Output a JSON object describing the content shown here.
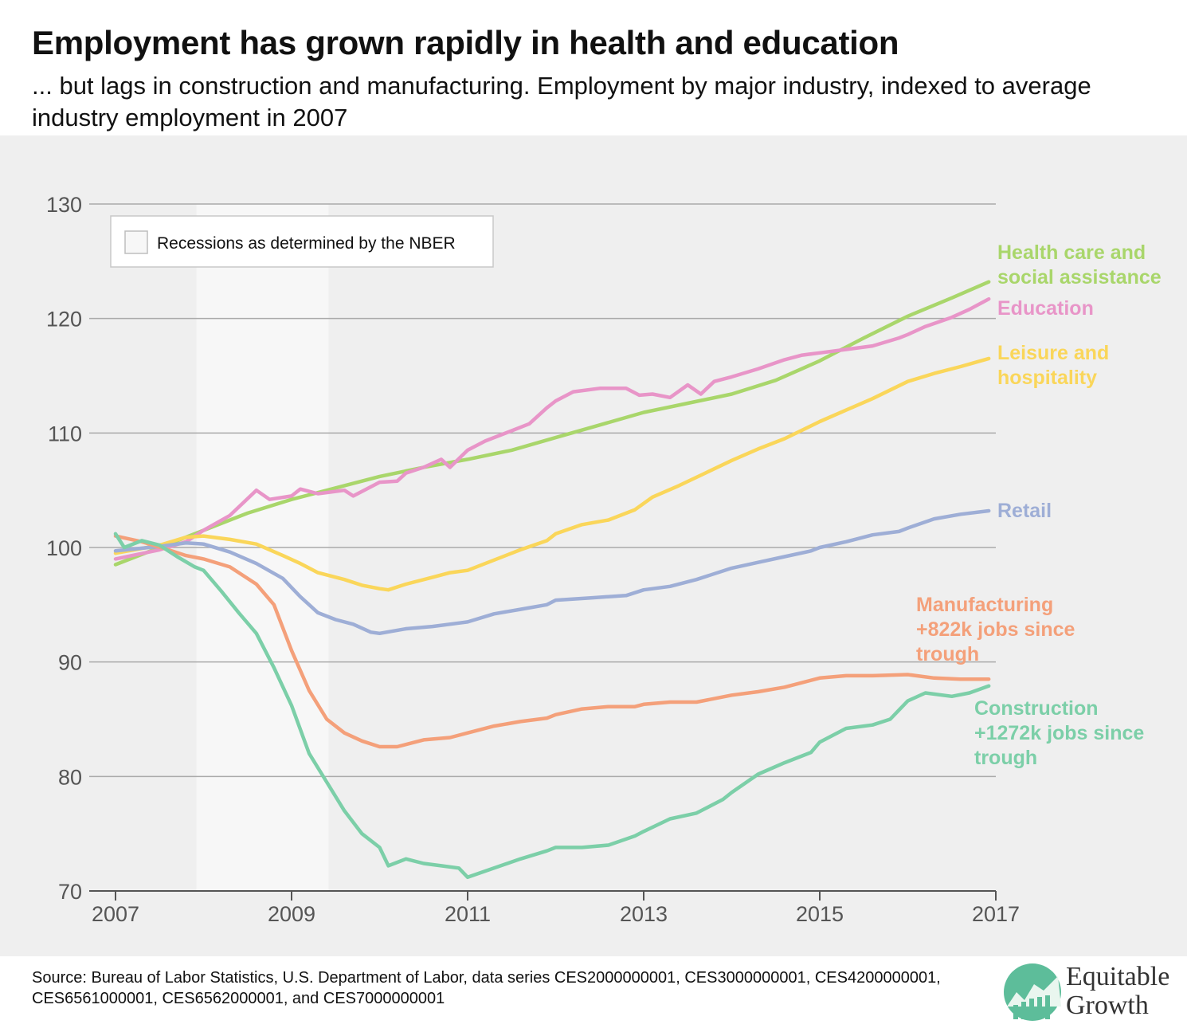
{
  "title": "Employment has grown rapidly in health and education",
  "subtitle": "... but lags in construction and manufacturing. Employment by major industry, indexed to average industry employment in 2007",
  "source": "Source: Bureau of Labor Statistics, U.S. Department of Labor, data series CES2000000001, CES3000000001, CES4200000001, CES6561000001, CES6562000001, and CES7000000001",
  "legend": {
    "recession_label": "Recessions as determined by the NBER"
  },
  "logo": {
    "line1": "Equitable",
    "line2": "Growth",
    "icon": "growth-chart-icon",
    "icon_color": "#5dbd9a"
  },
  "chart_data": {
    "type": "line",
    "title": "",
    "xlabel": "",
    "ylabel": "",
    "xlim": [
      2007,
      2017
    ],
    "ylim": [
      70,
      130
    ],
    "xticks": [
      "2007",
      "2009",
      "2011",
      "2013",
      "2015",
      "2017"
    ],
    "yticks": [
      "70",
      "80",
      "90",
      "100",
      "110",
      "120",
      "130"
    ],
    "grid": true,
    "recession": {
      "start": 2007.92,
      "end": 2009.42,
      "color": "#f7f7f7"
    },
    "series": [
      {
        "key": "health",
        "label_lines": [
          "Health care and",
          "social assistance"
        ],
        "color": "#a9d66b",
        "points": [
          [
            2007.0,
            98.5
          ],
          [
            2007.5,
            100.0
          ],
          [
            2008.0,
            101.5
          ],
          [
            2008.5,
            103.0
          ],
          [
            2009.0,
            104.2
          ],
          [
            2009.5,
            105.2
          ],
          [
            2010.0,
            106.2
          ],
          [
            2010.5,
            107.0
          ],
          [
            2011.0,
            107.7
          ],
          [
            2011.5,
            108.5
          ],
          [
            2012.0,
            109.6
          ],
          [
            2012.5,
            110.7
          ],
          [
            2013.0,
            111.8
          ],
          [
            2013.5,
            112.6
          ],
          [
            2014.0,
            113.4
          ],
          [
            2014.5,
            114.6
          ],
          [
            2015.0,
            116.3
          ],
          [
            2015.5,
            118.3
          ],
          [
            2016.0,
            120.2
          ],
          [
            2016.5,
            121.8
          ],
          [
            2016.92,
            123.2
          ]
        ]
      },
      {
        "key": "education",
        "label_lines": [
          "Education"
        ],
        "color": "#e895c8",
        "points": [
          [
            2007.0,
            99.0
          ],
          [
            2007.5,
            99.8
          ],
          [
            2007.8,
            100.5
          ],
          [
            2008.0,
            101.5
          ],
          [
            2008.3,
            102.8
          ],
          [
            2008.6,
            105.0
          ],
          [
            2008.75,
            104.2
          ],
          [
            2009.0,
            104.5
          ],
          [
            2009.1,
            105.1
          ],
          [
            2009.3,
            104.7
          ],
          [
            2009.6,
            105.0
          ],
          [
            2009.7,
            104.5
          ],
          [
            2009.9,
            105.3
          ],
          [
            2010.0,
            105.7
          ],
          [
            2010.2,
            105.8
          ],
          [
            2010.3,
            106.5
          ],
          [
            2010.5,
            107.0
          ],
          [
            2010.7,
            107.7
          ],
          [
            2010.8,
            107.0
          ],
          [
            2011.0,
            108.5
          ],
          [
            2011.2,
            109.3
          ],
          [
            2011.5,
            110.2
          ],
          [
            2011.7,
            110.8
          ],
          [
            2011.9,
            112.2
          ],
          [
            2012.0,
            112.8
          ],
          [
            2012.2,
            113.6
          ],
          [
            2012.5,
            113.9
          ],
          [
            2012.8,
            113.9
          ],
          [
            2012.95,
            113.3
          ],
          [
            2013.1,
            113.4
          ],
          [
            2013.3,
            113.1
          ],
          [
            2013.5,
            114.2
          ],
          [
            2013.65,
            113.4
          ],
          [
            2013.8,
            114.5
          ],
          [
            2014.0,
            114.9
          ],
          [
            2014.3,
            115.6
          ],
          [
            2014.6,
            116.4
          ],
          [
            2014.8,
            116.8
          ],
          [
            2015.0,
            117.0
          ],
          [
            2015.3,
            117.3
          ],
          [
            2015.6,
            117.6
          ],
          [
            2015.9,
            118.3
          ],
          [
            2016.0,
            118.6
          ],
          [
            2016.2,
            119.3
          ],
          [
            2016.5,
            120.1
          ],
          [
            2016.7,
            120.8
          ],
          [
            2016.92,
            121.7
          ]
        ]
      },
      {
        "key": "leisure",
        "label_lines": [
          "Leisure and",
          "hospitality"
        ],
        "color": "#fad65a",
        "points": [
          [
            2007.0,
            99.5
          ],
          [
            2007.5,
            100.2
          ],
          [
            2007.8,
            100.9
          ],
          [
            2008.0,
            101.0
          ],
          [
            2008.3,
            100.7
          ],
          [
            2008.6,
            100.3
          ],
          [
            2008.9,
            99.3
          ],
          [
            2009.1,
            98.6
          ],
          [
            2009.3,
            97.8
          ],
          [
            2009.6,
            97.2
          ],
          [
            2009.8,
            96.7
          ],
          [
            2010.0,
            96.4
          ],
          [
            2010.1,
            96.3
          ],
          [
            2010.3,
            96.8
          ],
          [
            2010.6,
            97.4
          ],
          [
            2010.8,
            97.8
          ],
          [
            2011.0,
            98.0
          ],
          [
            2011.3,
            98.9
          ],
          [
            2011.6,
            99.8
          ],
          [
            2011.9,
            100.6
          ],
          [
            2012.0,
            101.2
          ],
          [
            2012.3,
            102.0
          ],
          [
            2012.6,
            102.4
          ],
          [
            2012.9,
            103.3
          ],
          [
            2013.1,
            104.4
          ],
          [
            2013.4,
            105.4
          ],
          [
            2013.7,
            106.5
          ],
          [
            2014.0,
            107.6
          ],
          [
            2014.3,
            108.6
          ],
          [
            2014.6,
            109.5
          ],
          [
            2015.0,
            111.0
          ],
          [
            2015.3,
            112.0
          ],
          [
            2015.6,
            113.0
          ],
          [
            2016.0,
            114.5
          ],
          [
            2016.3,
            115.2
          ],
          [
            2016.6,
            115.8
          ],
          [
            2016.92,
            116.5
          ]
        ]
      },
      {
        "key": "retail",
        "label_lines": [
          "Retail"
        ],
        "color": "#9eaed6",
        "points": [
          [
            2007.0,
            99.7
          ],
          [
            2007.5,
            100.1
          ],
          [
            2007.8,
            100.4
          ],
          [
            2008.0,
            100.3
          ],
          [
            2008.3,
            99.6
          ],
          [
            2008.6,
            98.6
          ],
          [
            2008.9,
            97.3
          ],
          [
            2009.1,
            95.7
          ],
          [
            2009.3,
            94.3
          ],
          [
            2009.5,
            93.7
          ],
          [
            2009.7,
            93.3
          ],
          [
            2009.9,
            92.6
          ],
          [
            2010.0,
            92.5
          ],
          [
            2010.3,
            92.9
          ],
          [
            2010.6,
            93.1
          ],
          [
            2010.9,
            93.4
          ],
          [
            2011.0,
            93.5
          ],
          [
            2011.3,
            94.2
          ],
          [
            2011.6,
            94.6
          ],
          [
            2011.9,
            95.0
          ],
          [
            2012.0,
            95.4
          ],
          [
            2012.4,
            95.6
          ],
          [
            2012.8,
            95.8
          ],
          [
            2013.0,
            96.3
          ],
          [
            2013.3,
            96.6
          ],
          [
            2013.6,
            97.2
          ],
          [
            2014.0,
            98.2
          ],
          [
            2014.3,
            98.7
          ],
          [
            2014.6,
            99.2
          ],
          [
            2014.9,
            99.7
          ],
          [
            2015.0,
            100.0
          ],
          [
            2015.3,
            100.5
          ],
          [
            2015.6,
            101.1
          ],
          [
            2015.9,
            101.4
          ],
          [
            2016.0,
            101.7
          ],
          [
            2016.3,
            102.5
          ],
          [
            2016.6,
            102.9
          ],
          [
            2016.92,
            103.2
          ]
        ]
      },
      {
        "key": "manufacturing",
        "label_lines": [
          "Manufacturing",
          "+822k jobs since",
          "trough"
        ],
        "color": "#f4a07a",
        "points": [
          [
            2007.0,
            101.0
          ],
          [
            2007.3,
            100.5
          ],
          [
            2007.6,
            99.8
          ],
          [
            2007.8,
            99.3
          ],
          [
            2008.0,
            99.0
          ],
          [
            2008.3,
            98.3
          ],
          [
            2008.6,
            96.8
          ],
          [
            2008.8,
            95.0
          ],
          [
            2009.0,
            91.0
          ],
          [
            2009.2,
            87.5
          ],
          [
            2009.4,
            85.0
          ],
          [
            2009.6,
            83.8
          ],
          [
            2009.8,
            83.1
          ],
          [
            2010.0,
            82.6
          ],
          [
            2010.2,
            82.6
          ],
          [
            2010.5,
            83.2
          ],
          [
            2010.8,
            83.4
          ],
          [
            2011.0,
            83.8
          ],
          [
            2011.3,
            84.4
          ],
          [
            2011.6,
            84.8
          ],
          [
            2011.9,
            85.1
          ],
          [
            2012.0,
            85.4
          ],
          [
            2012.3,
            85.9
          ],
          [
            2012.6,
            86.1
          ],
          [
            2012.9,
            86.1
          ],
          [
            2013.0,
            86.3
          ],
          [
            2013.3,
            86.5
          ],
          [
            2013.6,
            86.5
          ],
          [
            2014.0,
            87.1
          ],
          [
            2014.3,
            87.4
          ],
          [
            2014.6,
            87.8
          ],
          [
            2015.0,
            88.6
          ],
          [
            2015.3,
            88.8
          ],
          [
            2015.6,
            88.8
          ],
          [
            2016.0,
            88.9
          ],
          [
            2016.3,
            88.6
          ],
          [
            2016.6,
            88.5
          ],
          [
            2016.92,
            88.5
          ]
        ]
      },
      {
        "key": "construction",
        "label_lines": [
          "Construction",
          "+1272k jobs since",
          "trough"
        ],
        "color": "#7ccfa8",
        "points": [
          [
            2007.0,
            101.2
          ],
          [
            2007.1,
            100.0
          ],
          [
            2007.3,
            100.6
          ],
          [
            2007.5,
            100.2
          ],
          [
            2007.7,
            99.2
          ],
          [
            2007.9,
            98.3
          ],
          [
            2008.0,
            98.0
          ],
          [
            2008.2,
            96.2
          ],
          [
            2008.4,
            94.3
          ],
          [
            2008.6,
            92.5
          ],
          [
            2008.8,
            89.5
          ],
          [
            2009.0,
            86.2
          ],
          [
            2009.2,
            82.0
          ],
          [
            2009.4,
            79.5
          ],
          [
            2009.6,
            77.0
          ],
          [
            2009.8,
            75.0
          ],
          [
            2010.0,
            73.8
          ],
          [
            2010.1,
            72.2
          ],
          [
            2010.3,
            72.8
          ],
          [
            2010.5,
            72.4
          ],
          [
            2010.7,
            72.2
          ],
          [
            2010.9,
            72.0
          ],
          [
            2011.0,
            71.2
          ],
          [
            2011.3,
            72.0
          ],
          [
            2011.6,
            72.8
          ],
          [
            2011.9,
            73.5
          ],
          [
            2012.0,
            73.8
          ],
          [
            2012.3,
            73.8
          ],
          [
            2012.6,
            74.0
          ],
          [
            2012.9,
            74.8
          ],
          [
            2013.0,
            75.2
          ],
          [
            2013.3,
            76.3
          ],
          [
            2013.6,
            76.8
          ],
          [
            2013.9,
            78.0
          ],
          [
            2014.0,
            78.6
          ],
          [
            2014.3,
            80.2
          ],
          [
            2014.6,
            81.2
          ],
          [
            2014.9,
            82.1
          ],
          [
            2015.0,
            83.0
          ],
          [
            2015.3,
            84.2
          ],
          [
            2015.6,
            84.5
          ],
          [
            2015.8,
            85.0
          ],
          [
            2016.0,
            86.6
          ],
          [
            2016.2,
            87.3
          ],
          [
            2016.5,
            87.0
          ],
          [
            2016.7,
            87.3
          ],
          [
            2016.92,
            87.9
          ]
        ]
      }
    ]
  }
}
